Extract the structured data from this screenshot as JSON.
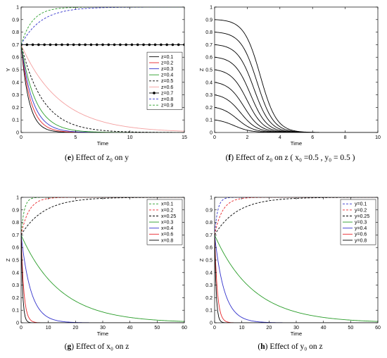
{
  "captions": {
    "e": {
      "letter": "e",
      "text": "Effect of z₀ on y"
    },
    "f": {
      "letter": "f",
      "text": "Effect of z₀ on z ( x₀ =0.5 , y₀ = 0.5 )"
    },
    "g": {
      "letter": "g",
      "text": "Effect of x₀ on z"
    },
    "h": {
      "letter": "h",
      "text": "Effect of y₀ on z"
    }
  },
  "chart_data": [
    {
      "id": "e",
      "type": "line",
      "xlabel": "Time",
      "ylabel": "Y",
      "xlim": [
        0,
        15
      ],
      "ylim": [
        0,
        1
      ],
      "xticks": [
        0,
        5,
        10,
        15
      ],
      "yticks": [
        0,
        0.1,
        0.2,
        0.3,
        0.4,
        0.5,
        0.6,
        0.7,
        0.8,
        0.9,
        1
      ],
      "legend": "right-middle",
      "grid": false,
      "series": [
        {
          "name": "z=0.1",
          "color": "#000000",
          "dash": "solid",
          "model": "decay",
          "start": 0.7,
          "rate": 1.4
        },
        {
          "name": "z=0.2",
          "color": "#e8262a",
          "dash": "solid",
          "model": "decay",
          "start": 0.7,
          "rate": 1.15
        },
        {
          "name": "z=0.3",
          "color": "#3333cc",
          "dash": "solid",
          "model": "decay",
          "start": 0.7,
          "rate": 0.95
        },
        {
          "name": "z=0.4",
          "color": "#2a9d2a",
          "dash": "solid",
          "model": "decay",
          "start": 0.7,
          "rate": 0.75
        },
        {
          "name": "z=0.5",
          "color": "#000000",
          "dash": "dashed",
          "model": "decay",
          "start": 0.7,
          "rate": 0.5
        },
        {
          "name": "z=0.6",
          "color": "#f4a0a0",
          "dash": "solid",
          "model": "decay",
          "start": 0.7,
          "rate": 0.28
        },
        {
          "name": "z=0.7",
          "color": "#000000",
          "dash": "solid",
          "marker": "star",
          "model": "constant",
          "start": 0.7
        },
        {
          "name": "z=0.8",
          "color": "#3333cc",
          "dash": "dashed",
          "model": "grow",
          "start": 0.7,
          "rate": 0.55
        },
        {
          "name": "z=0.9",
          "color": "#2a9d2a",
          "dash": "dashed",
          "model": "grow",
          "start": 0.7,
          "rate": 0.95
        }
      ]
    },
    {
      "id": "f",
      "type": "line",
      "xlabel": "Time",
      "ylabel": "Z",
      "xlim": [
        0,
        10
      ],
      "ylim": [
        0,
        1
      ],
      "xticks": [
        0,
        2,
        4,
        6,
        8,
        10
      ],
      "yticks": [
        0,
        0.1,
        0.2,
        0.3,
        0.4,
        0.5,
        0.6,
        0.7,
        0.8,
        0.9,
        1
      ],
      "grid": false,
      "series": [
        {
          "color": "#000000",
          "dash": "solid",
          "model": "sigmoid",
          "start": 0.1,
          "t50": 1.2
        },
        {
          "color": "#000000",
          "dash": "solid",
          "model": "sigmoid",
          "start": 0.2,
          "t50": 1.4
        },
        {
          "color": "#000000",
          "dash": "solid",
          "model": "sigmoid",
          "start": 0.3,
          "t50": 1.6
        },
        {
          "color": "#000000",
          "dash": "solid",
          "model": "sigmoid",
          "start": 0.4,
          "t50": 1.8
        },
        {
          "color": "#000000",
          "dash": "solid",
          "model": "sigmoid",
          "start": 0.5,
          "t50": 2.0
        },
        {
          "color": "#000000",
          "dash": "solid",
          "model": "sigmoid",
          "start": 0.6,
          "t50": 2.2
        },
        {
          "color": "#000000",
          "dash": "solid",
          "model": "sigmoid",
          "start": 0.7,
          "t50": 2.4
        },
        {
          "color": "#000000",
          "dash": "solid",
          "model": "sigmoid",
          "start": 0.8,
          "t50": 2.6
        },
        {
          "color": "#000000",
          "dash": "solid",
          "model": "sigmoid",
          "start": 0.9,
          "t50": 2.8
        }
      ]
    },
    {
      "id": "g",
      "type": "line",
      "xlabel": "Time",
      "ylabel": "Z",
      "xlim": [
        0,
        60
      ],
      "ylim": [
        0,
        1
      ],
      "xticks": [
        0,
        10,
        20,
        30,
        40,
        50,
        60
      ],
      "yticks": [
        0,
        0.1,
        0.2,
        0.3,
        0.4,
        0.5,
        0.6,
        0.7,
        0.8,
        0.9,
        1
      ],
      "legend": "top-right",
      "grid": false,
      "series": [
        {
          "name": "x=0.1",
          "color": "#2a9d2a",
          "dash": "dashed",
          "model": "grow",
          "start": 0.7,
          "rate": 0.9
        },
        {
          "name": "x=0.2",
          "color": "#e8262a",
          "dash": "dashed",
          "model": "grow",
          "start": 0.7,
          "rate": 0.35
        },
        {
          "name": "x=0.25",
          "color": "#000000",
          "dash": "dashed",
          "model": "grow",
          "start": 0.7,
          "rate": 0.12
        },
        {
          "name": "x=0.3",
          "color": "#2a9d2a",
          "dash": "solid",
          "model": "decay",
          "start": 0.7,
          "rate": 0.07
        },
        {
          "name": "x=0.4",
          "color": "#3333cc",
          "dash": "solid",
          "model": "decay",
          "start": 0.7,
          "rate": 0.28
        },
        {
          "name": "x=0.6",
          "color": "#e8262a",
          "dash": "solid",
          "model": "decay",
          "start": 0.7,
          "rate": 1.0
        },
        {
          "name": "x=0.8",
          "color": "#000000",
          "dash": "solid",
          "model": "decay",
          "start": 0.7,
          "rate": 1.8
        }
      ]
    },
    {
      "id": "h",
      "type": "line",
      "xlabel": "Time",
      "ylabel": "Z",
      "xlim": [
        0,
        60
      ],
      "ylim": [
        0,
        1
      ],
      "xticks": [
        0,
        10,
        20,
        30,
        40,
        50,
        60
      ],
      "yticks": [
        0,
        0.1,
        0.2,
        0.3,
        0.4,
        0.5,
        0.6,
        0.7,
        0.8,
        0.9,
        1
      ],
      "legend": "top-right",
      "grid": false,
      "series": [
        {
          "name": "y=0.1",
          "color": "#3333cc",
          "dash": "dashed",
          "model": "grow",
          "start": 0.7,
          "rate": 0.9
        },
        {
          "name": "y=0.2",
          "color": "#e8262a",
          "dash": "dashed",
          "model": "grow",
          "start": 0.7,
          "rate": 0.35
        },
        {
          "name": "y=0.25",
          "color": "#000000",
          "dash": "dashed",
          "model": "grow",
          "start": 0.7,
          "rate": 0.12
        },
        {
          "name": "y=0.3",
          "color": "#2a9d2a",
          "dash": "solid",
          "model": "decay",
          "start": 0.7,
          "rate": 0.07
        },
        {
          "name": "y=0.4",
          "color": "#3333cc",
          "dash": "solid",
          "model": "decay",
          "start": 0.7,
          "rate": 0.28
        },
        {
          "name": "y=0.6",
          "color": "#e8262a",
          "dash": "solid",
          "model": "decay",
          "start": 0.7,
          "rate": 1.0
        },
        {
          "name": "y=0.8",
          "color": "#000000",
          "dash": "solid",
          "model": "decay",
          "start": 0.7,
          "rate": 1.8
        }
      ]
    }
  ]
}
